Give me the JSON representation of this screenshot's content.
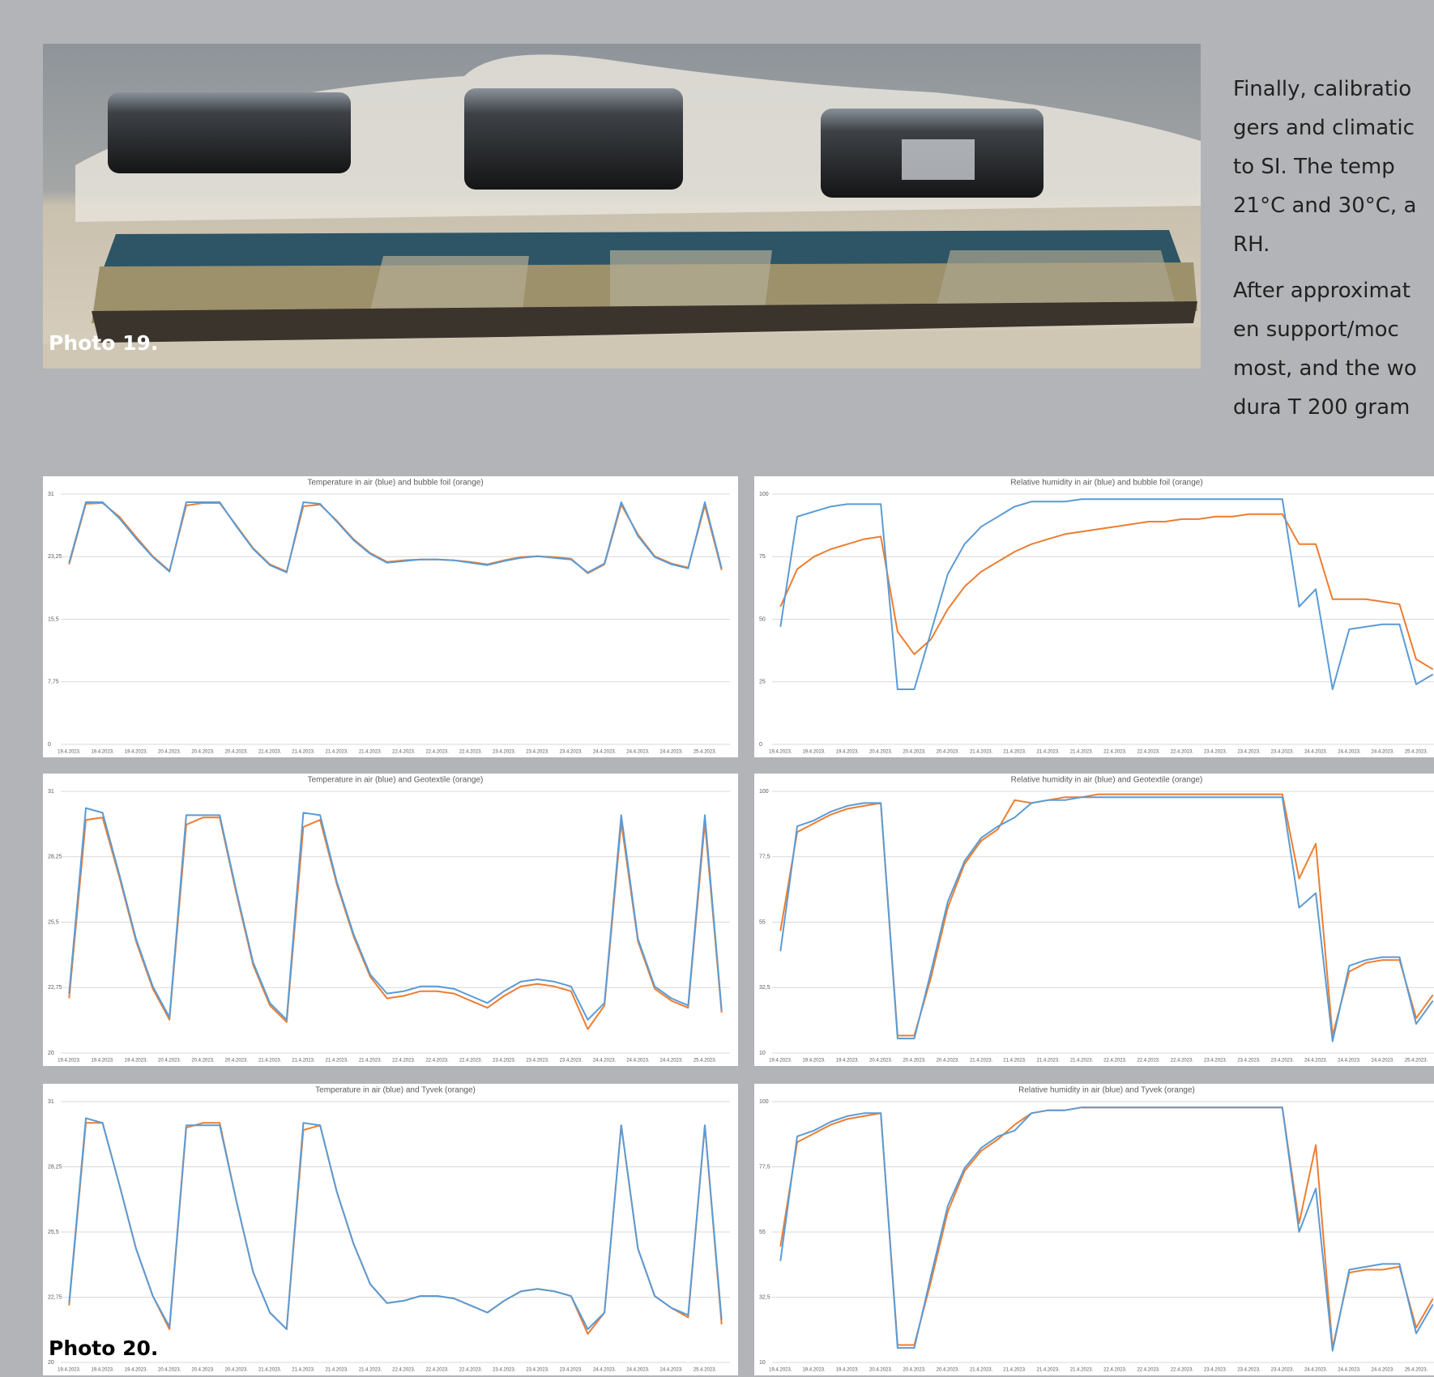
{
  "photo_19": {
    "caption": "Photo 19."
  },
  "text": {
    "lines": [
      "Finally, calibratio",
      "gers and climatic",
      "to SI. The temp",
      "21°C and 30°C, a",
      "RH.",
      "After approximat",
      "en support/moc",
      "most, and the wo",
      "dura T 200 gram"
    ]
  },
  "photo_20": {
    "caption": "Photo 20."
  },
  "chart_data": [
    {
      "type": "line",
      "title": "Temperature in air (blue) and bubble foil (orange)",
      "categories": [
        "19.4.2023.",
        null,
        "19.4.2023.",
        null,
        "19.4.2023.",
        null,
        "20.4.2023.",
        null,
        "20.4.2023.",
        null,
        "20.4.2023.",
        null,
        "21.4.2023.",
        null,
        "21.4.2023.",
        null,
        "21.4.2023.",
        null,
        "21.4.2023.",
        null,
        "22.4.2023.",
        null,
        "22.4.2023.",
        null,
        "22.4.2023.",
        null,
        "23.4.2023.",
        null,
        "23.4.2023.",
        null,
        "23.4.2023.",
        null,
        "24.4.2023.",
        null,
        "24.4.2023.",
        null,
        "24.4.2023.",
        null,
        "25.4.2023.",
        null
      ],
      "series": [
        {
          "color": "#ed7d31",
          "values": [
            22.3,
            29.8,
            29.9,
            28.2,
            25.7,
            23.3,
            21.5,
            29.6,
            29.9,
            29.9,
            27.1,
            24.3,
            22.3,
            21.4,
            29.5,
            29.7,
            27.7,
            25.4,
            23.7,
            22.6,
            22.8,
            22.9,
            22.9,
            22.8,
            22.6,
            22.3,
            22.8,
            23.2,
            23.3,
            23.2,
            23,
            21.2,
            22.3,
            29.7,
            26,
            23.3,
            22.4,
            21.9,
            29.6,
            21.6
          ]
        },
        {
          "color": "#5b9bd5",
          "values": [
            22.5,
            30,
            30,
            28,
            25.5,
            23.2,
            21.4,
            30,
            30,
            30,
            27,
            24.2,
            22.2,
            21.3,
            30,
            29.8,
            27.6,
            25.3,
            23.6,
            22.5,
            22.7,
            22.9,
            22.9,
            22.8,
            22.5,
            22.2,
            22.7,
            23.1,
            23.3,
            23.1,
            22.9,
            21.3,
            22.4,
            30,
            25.8,
            23.2,
            22.3,
            21.8,
            30,
            21.8
          ]
        }
      ],
      "ylim": [
        0,
        31
      ],
      "yticks": [
        0,
        {
          "value": 7.75,
          "label": "7,75"
        },
        {
          "value": 15.5,
          "label": "15,5"
        },
        {
          "value": 23.25,
          "label": "23,25"
        },
        31
      ],
      "grid": true
    },
    {
      "type": "line",
      "title": "Relative humidity in air (blue) and bubble foil (orange)",
      "categories": [
        "19.4.2023.",
        null,
        "19.4.2023.",
        null,
        "19.4.2023.",
        null,
        "20.4.2023.",
        null,
        "20.4.2023.",
        null,
        "20.4.2023.",
        null,
        "21.4.2023.",
        null,
        "21.4.2023.",
        null,
        "21.4.2023.",
        null,
        "21.4.2023.",
        null,
        "22.4.2023.",
        null,
        "22.4.2023.",
        null,
        "22.4.2023.",
        null,
        "23.4.2023.",
        null,
        "23.4.2023.",
        null,
        "23.4.2023.",
        null,
        "24.4.2023.",
        null,
        "24.4.2023.",
        null,
        "24.4.2023.",
        null,
        "25.4.2023.",
        null
      ],
      "series": [
        {
          "color": "#ed7d31",
          "values": [
            55,
            70,
            75,
            78,
            80,
            82,
            83,
            45,
            36,
            42,
            54,
            63,
            69,
            73,
            77,
            80,
            82,
            84,
            85,
            86,
            87,
            88,
            89,
            89,
            90,
            90,
            91,
            91,
            92,
            92,
            92,
            80,
            80,
            58,
            58,
            58,
            57,
            56,
            34,
            30
          ]
        },
        {
          "color": "#5b9bd5",
          "values": [
            47,
            91,
            93,
            95,
            96,
            96,
            96,
            22,
            22,
            45,
            68,
            80,
            87,
            91,
            95,
            97,
            97,
            97,
            98,
            98,
            98,
            98,
            98,
            98,
            98,
            98,
            98,
            98,
            98,
            98,
            98,
            55,
            62,
            22,
            46,
            47,
            48,
            48,
            24,
            28
          ]
        }
      ],
      "ylim": [
        0,
        100
      ],
      "yticks": [
        0,
        25,
        50,
        75,
        100
      ],
      "grid": true
    },
    {
      "type": "line",
      "title": "Temperature in air (blue) and Geotextile (orange)",
      "categories": [
        "19.4.2023.",
        null,
        "19.4.2023.",
        null,
        "19.4.2023.",
        null,
        "20.4.2023.",
        null,
        "20.4.2023.",
        null,
        "20.4.2023.",
        null,
        "21.4.2023.",
        null,
        "21.4.2023.",
        null,
        "21.4.2023.",
        null,
        "21.4.2023.",
        null,
        "22.4.2023.",
        null,
        "22.4.2023.",
        null,
        "22.4.2023.",
        null,
        "23.4.2023.",
        null,
        "23.4.2023.",
        null,
        "23.4.2023.",
        null,
        "24.4.2023.",
        null,
        "24.4.2023.",
        null,
        "24.4.2023.",
        null,
        "25.4.2023.",
        null
      ],
      "series": [
        {
          "color": "#ed7d31",
          "values": [
            22.3,
            29.8,
            29.9,
            27.4,
            24.7,
            22.7,
            21.4,
            29.6,
            29.9,
            29.9,
            26.7,
            23.7,
            22,
            21.3,
            29.5,
            29.8,
            27.1,
            24.9,
            23.2,
            22.3,
            22.4,
            22.6,
            22.6,
            22.5,
            22.2,
            21.9,
            22.4,
            22.8,
            22.9,
            22.8,
            22.6,
            21,
            22,
            29.7,
            24.7,
            22.7,
            22.2,
            21.9,
            29.7,
            21.7
          ]
        },
        {
          "color": "#5b9bd5",
          "values": [
            22.5,
            30.3,
            30.1,
            27.5,
            24.8,
            22.8,
            21.5,
            30,
            30,
            30,
            26.8,
            23.8,
            22.1,
            21.4,
            30.1,
            30,
            27.2,
            25,
            23.3,
            22.5,
            22.6,
            22.8,
            22.8,
            22.7,
            22.4,
            22.1,
            22.6,
            23,
            23.1,
            23,
            22.8,
            21.4,
            22.1,
            30,
            24.8,
            22.8,
            22.3,
            22,
            30,
            21.8
          ]
        }
      ],
      "ylim": [
        20,
        31
      ],
      "yticks": [
        20,
        {
          "value": 22.75,
          "label": "22,75"
        },
        {
          "value": 25.5,
          "label": "25,5"
        },
        {
          "value": 28.25,
          "label": "28,25"
        },
        31
      ],
      "grid": true
    },
    {
      "type": "line",
      "title": "Relative humidity in air (blue) and Geotextile (orange)",
      "categories": [
        "19.4.2023.",
        null,
        "19.4.2023.",
        null,
        "19.4.2023.",
        null,
        "20.4.2023.",
        null,
        "20.4.2023.",
        null,
        "20.4.2023.",
        null,
        "21.4.2023.",
        null,
        "21.4.2023.",
        null,
        "21.4.2023.",
        null,
        "21.4.2023.",
        null,
        "22.4.2023.",
        null,
        "22.4.2023.",
        null,
        "22.4.2023.",
        null,
        "23.4.2023.",
        null,
        "23.4.2023.",
        null,
        "23.4.2023.",
        null,
        "24.4.2023.",
        null,
        "24.4.2023.",
        null,
        "24.4.2023.",
        null,
        "25.4.2023.",
        null
      ],
      "series": [
        {
          "color": "#ed7d31",
          "values": [
            52,
            86,
            89,
            92,
            94,
            95,
            96,
            16,
            16,
            36,
            60,
            75,
            83,
            87,
            97,
            96,
            97,
            98,
            98,
            99,
            99,
            99,
            99,
            99,
            99,
            99,
            99,
            99,
            99,
            99,
            99,
            70,
            82,
            16,
            38,
            41,
            42,
            42,
            22,
            30
          ]
        },
        {
          "color": "#5b9bd5",
          "values": [
            45,
            88,
            90,
            93,
            95,
            96,
            96,
            15,
            15,
            38,
            62,
            76,
            84,
            88,
            91,
            96,
            97,
            97,
            98,
            98,
            98,
            98,
            98,
            98,
            98,
            98,
            98,
            98,
            98,
            98,
            98,
            60,
            65,
            14,
            40,
            42,
            43,
            43,
            20,
            28
          ]
        }
      ],
      "ylim": [
        10,
        100
      ],
      "yticks": [
        10,
        {
          "value": 32.5,
          "label": "32,5"
        },
        55,
        {
          "value": 77.5,
          "label": "77,5"
        },
        100
      ],
      "grid": true
    },
    {
      "type": "line",
      "title": "Temperature in air (blue) and Tyvek (orange)",
      "categories": [
        "19.4.2023.",
        null,
        "19.4.2023.",
        null,
        "19.4.2023.",
        null,
        "20.4.2023.",
        null,
        "20.4.2023.",
        null,
        "20.4.2023.",
        null,
        "21.4.2023.",
        null,
        "21.4.2023.",
        null,
        "21.4.2023.",
        null,
        "21.4.2023.",
        null,
        "22.4.2023.",
        null,
        "22.4.2023.",
        null,
        "22.4.2023.",
        null,
        "23.4.2023.",
        null,
        "23.4.2023.",
        null,
        "23.4.2023.",
        null,
        "24.4.2023.",
        null,
        "24.4.2023.",
        null,
        "24.4.2023.",
        null,
        "25.4.2023.",
        null
      ],
      "series": [
        {
          "color": "#ed7d31",
          "values": [
            22.4,
            30.1,
            30.1,
            27.5,
            24.8,
            22.8,
            21.4,
            29.9,
            30.1,
            30.1,
            26.8,
            23.8,
            22.1,
            21.4,
            29.8,
            30,
            27.2,
            25,
            23.3,
            22.5,
            22.6,
            22.8,
            22.8,
            22.7,
            22.4,
            22.1,
            22.6,
            23,
            23.1,
            23,
            22.8,
            21.2,
            22.1,
            30,
            24.8,
            22.8,
            22.3,
            21.9,
            30,
            21.6
          ]
        },
        {
          "color": "#5b9bd5",
          "values": [
            22.5,
            30.3,
            30.1,
            27.5,
            24.8,
            22.8,
            21.5,
            30,
            30,
            30,
            26.8,
            23.8,
            22.1,
            21.4,
            30.1,
            30,
            27.2,
            25,
            23.3,
            22.5,
            22.6,
            22.8,
            22.8,
            22.7,
            22.4,
            22.1,
            22.6,
            23,
            23.1,
            23,
            22.8,
            21.4,
            22.1,
            30,
            24.8,
            22.8,
            22.3,
            22,
            30,
            21.8
          ]
        }
      ],
      "ylim": [
        20,
        31
      ],
      "yticks": [
        20,
        {
          "value": 22.75,
          "label": "22,75"
        },
        {
          "value": 25.5,
          "label": "25,5"
        },
        {
          "value": 28.25,
          "label": "28,25"
        },
        31
      ],
      "grid": true
    },
    {
      "type": "line",
      "title": "Relative humidity in air (blue) and Tyvek (orange)",
      "categories": [
        "19.4.2023.",
        null,
        "19.4.2023.",
        null,
        "19.4.2023.",
        null,
        "20.4.2023.",
        null,
        "20.4.2023.",
        null,
        "20.4.2023.",
        null,
        "21.4.2023.",
        null,
        "21.4.2023.",
        null,
        "21.4.2023.",
        null,
        "21.4.2023.",
        null,
        "22.4.2023.",
        null,
        "22.4.2023.",
        null,
        "22.4.2023.",
        null,
        "23.4.2023.",
        null,
        "23.4.2023.",
        null,
        "23.4.2023.",
        null,
        "24.4.2023.",
        null,
        "24.4.2023.",
        null,
        "24.4.2023.",
        null,
        "25.4.2023.",
        null
      ],
      "series": [
        {
          "color": "#ed7d31",
          "values": [
            50,
            86,
            89,
            92,
            94,
            95,
            96,
            16,
            16,
            38,
            62,
            76,
            83,
            87,
            92,
            96,
            97,
            97,
            98,
            98,
            98,
            98,
            98,
            98,
            98,
            98,
            98,
            98,
            98,
            98,
            98,
            58,
            85,
            15,
            41,
            42,
            42,
            43,
            22,
            32
          ]
        },
        {
          "color": "#5b9bd5",
          "values": [
            45,
            88,
            90,
            93,
            95,
            96,
            96,
            15,
            15,
            40,
            64,
            77,
            84,
            88,
            90,
            96,
            97,
            97,
            98,
            98,
            98,
            98,
            98,
            98,
            98,
            98,
            98,
            98,
            98,
            98,
            98,
            55,
            70,
            14,
            42,
            43,
            44,
            44,
            20,
            30
          ]
        }
      ],
      "ylim": [
        10,
        100
      ],
      "yticks": [
        10,
        {
          "value": 32.5,
          "label": "32,5"
        },
        55,
        {
          "value": 77.5,
          "label": "77,5"
        },
        100
      ],
      "grid": true
    }
  ]
}
